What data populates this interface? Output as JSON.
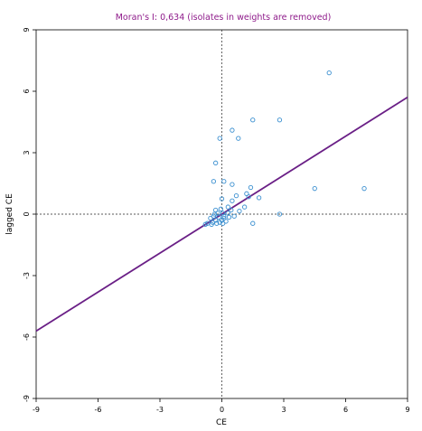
{
  "chart_data": {
    "type": "scatter",
    "title": "Moran's I: 0,634 (isolates in weights are removed)",
    "xlabel": "CE",
    "ylabel": "lagged CE",
    "xlim": [
      -9,
      9
    ],
    "ylim": [
      -9,
      9
    ],
    "x_ticks": [
      "-9",
      "-6",
      "-3",
      "0",
      "3",
      "6",
      "9"
    ],
    "y_ticks": [
      "-9",
      "-6",
      "-3",
      "0",
      "3",
      "6",
      "9"
    ],
    "grid": false,
    "reference_lines": {
      "x": 0,
      "y": 0
    },
    "regression_line": {
      "slope": 0.634,
      "intercept": 0
    },
    "points": [
      {
        "x": 5.2,
        "y": 6.9
      },
      {
        "x": 6.9,
        "y": 1.25
      },
      {
        "x": 4.5,
        "y": 1.25
      },
      {
        "x": 2.8,
        "y": 4.6
      },
      {
        "x": 1.5,
        "y": 4.6
      },
      {
        "x": 0.5,
        "y": 4.1
      },
      {
        "x": 0.8,
        "y": 3.7
      },
      {
        "x": -0.1,
        "y": 3.7
      },
      {
        "x": -0.3,
        "y": 2.5
      },
      {
        "x": -0.4,
        "y": 1.6
      },
      {
        "x": 0.1,
        "y": 1.6
      },
      {
        "x": 0.5,
        "y": 1.45
      },
      {
        "x": 1.4,
        "y": 1.3
      },
      {
        "x": 1.2,
        "y": 1.0
      },
      {
        "x": 1.3,
        "y": 0.85
      },
      {
        "x": 1.8,
        "y": 0.8
      },
      {
        "x": 0.7,
        "y": 0.9
      },
      {
        "x": 0.0,
        "y": 0.75
      },
      {
        "x": 0.5,
        "y": 0.65
      },
      {
        "x": 1.1,
        "y": 0.35
      },
      {
        "x": 1.5,
        "y": -0.45
      },
      {
        "x": 2.8,
        "y": 0.0
      },
      {
        "x": 0.3,
        "y": 0.35
      },
      {
        "x": 0.85,
        "y": 0.15
      },
      {
        "x": -0.3,
        "y": 0.2
      },
      {
        "x": -0.05,
        "y": 0.25
      },
      {
        "x": 0.3,
        "y": 0.05
      },
      {
        "x": 0.05,
        "y": 0.05
      },
      {
        "x": -0.2,
        "y": 0.05
      },
      {
        "x": 0.6,
        "y": -0.1
      },
      {
        "x": 0.35,
        "y": -0.15
      },
      {
        "x": -0.4,
        "y": -0.1
      },
      {
        "x": -0.15,
        "y": -0.15
      },
      {
        "x": 0.1,
        "y": -0.2
      },
      {
        "x": -0.55,
        "y": -0.2
      },
      {
        "x": -0.3,
        "y": -0.3
      },
      {
        "x": 0.0,
        "y": -0.3
      },
      {
        "x": 0.2,
        "y": -0.35
      },
      {
        "x": -0.1,
        "y": -0.4
      },
      {
        "x": -0.45,
        "y": -0.4
      },
      {
        "x": -0.7,
        "y": -0.45
      },
      {
        "x": -0.25,
        "y": -0.45
      },
      {
        "x": 0.05,
        "y": -0.45
      },
      {
        "x": -0.5,
        "y": -0.5
      },
      {
        "x": -0.8,
        "y": -0.5
      },
      {
        "x": 0.1,
        "y": -0.1
      },
      {
        "x": -0.35,
        "y": 0.0
      },
      {
        "x": 0.45,
        "y": 0.2
      }
    ]
  },
  "colors": {
    "title": "#8e1a8a",
    "regression": "#6a1f86",
    "points": "#3a8fd0",
    "axes": "#000000",
    "reference": "#222222"
  }
}
